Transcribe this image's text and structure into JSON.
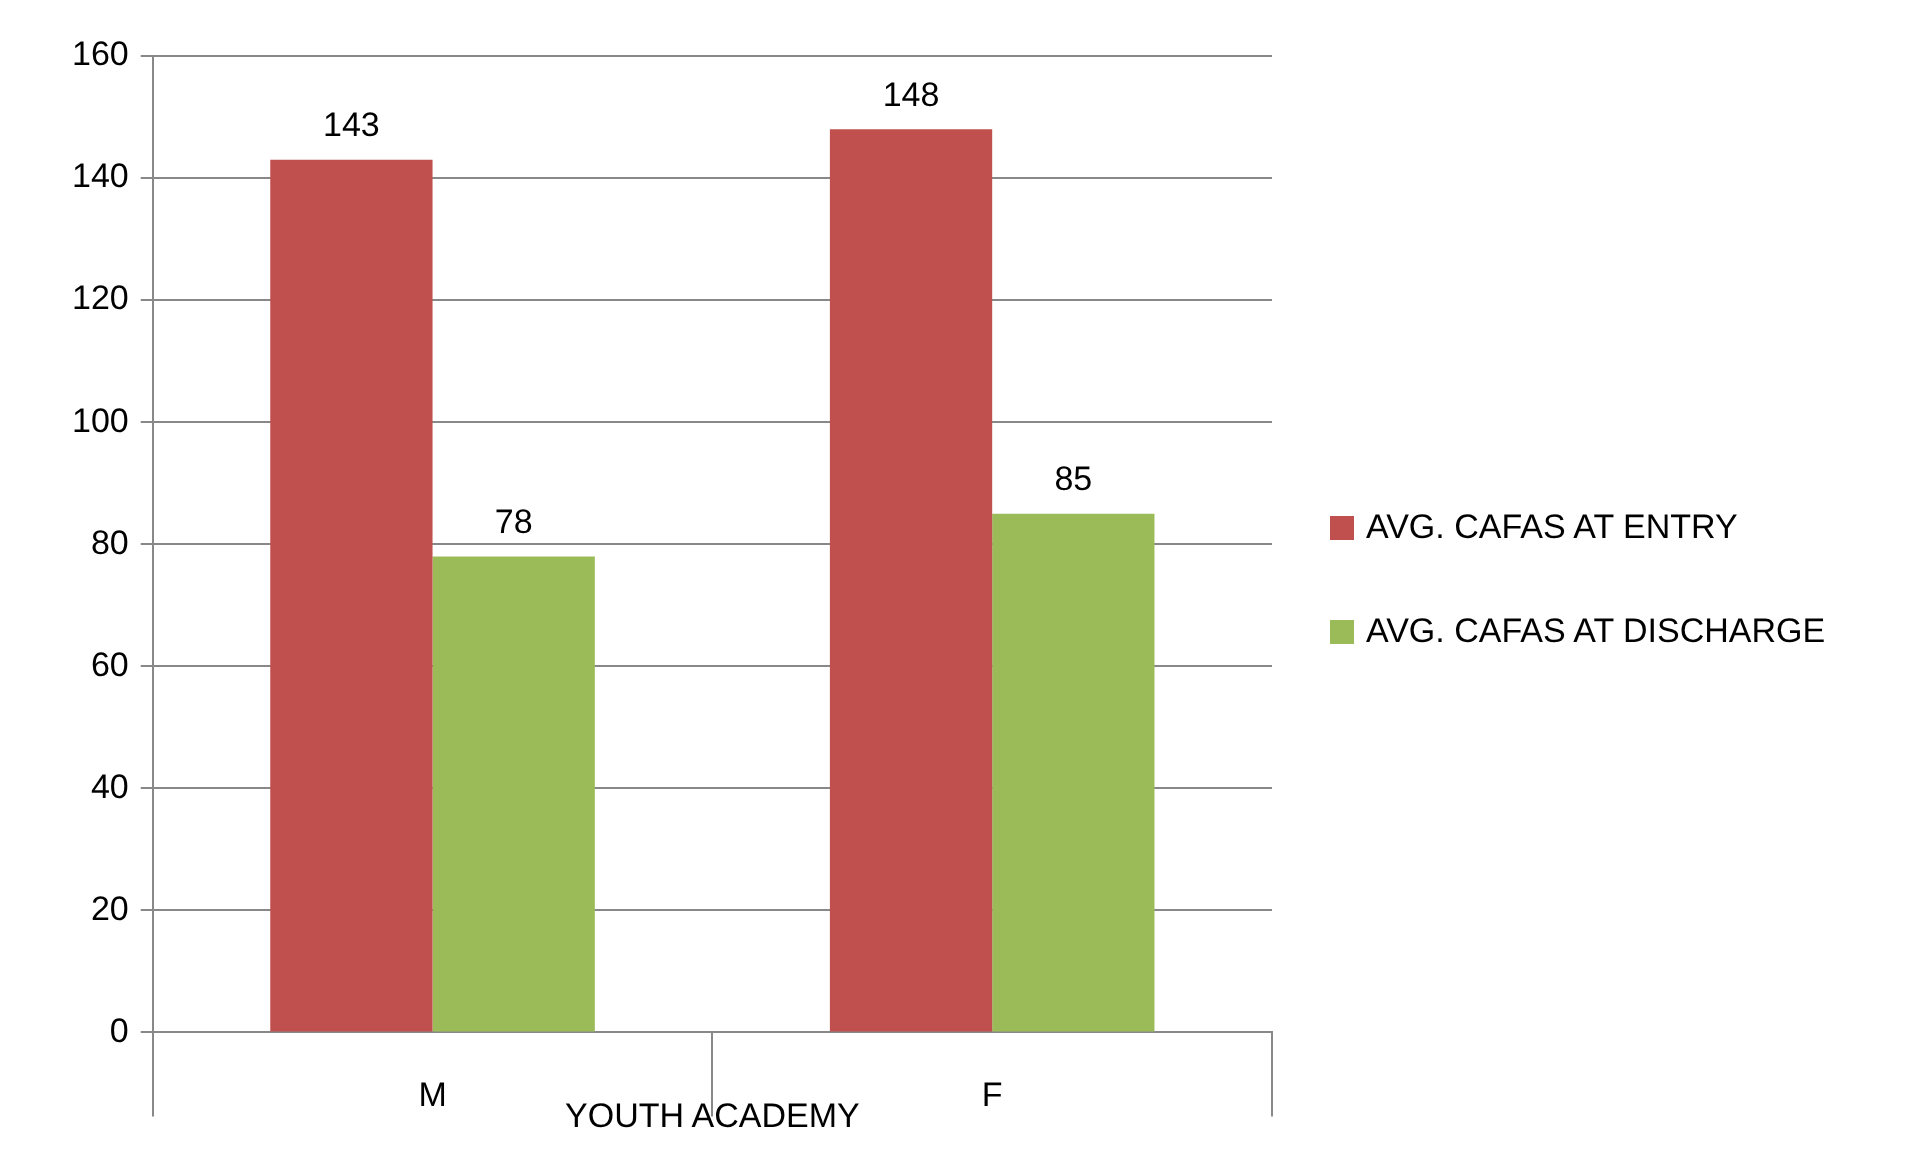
{
  "chart_data": {
    "type": "bar",
    "xlabel": "YOUTH ACADEMY",
    "categories": [
      "M",
      "F"
    ],
    "series": [
      {
        "name": "AVG. CAFAS AT ENTRY",
        "color": "#c0504d",
        "values": [
          143,
          148
        ]
      },
      {
        "name": "AVG. CAFAS AT DISCHARGE",
        "color": "#9bbb59",
        "values": [
          78,
          85
        ]
      }
    ],
    "ylim": [
      0,
      160
    ],
    "yticks": [
      0,
      20,
      40,
      60,
      80,
      100,
      120,
      140,
      160
    ],
    "grid": "y",
    "legend": "right",
    "data_labels": true
  }
}
